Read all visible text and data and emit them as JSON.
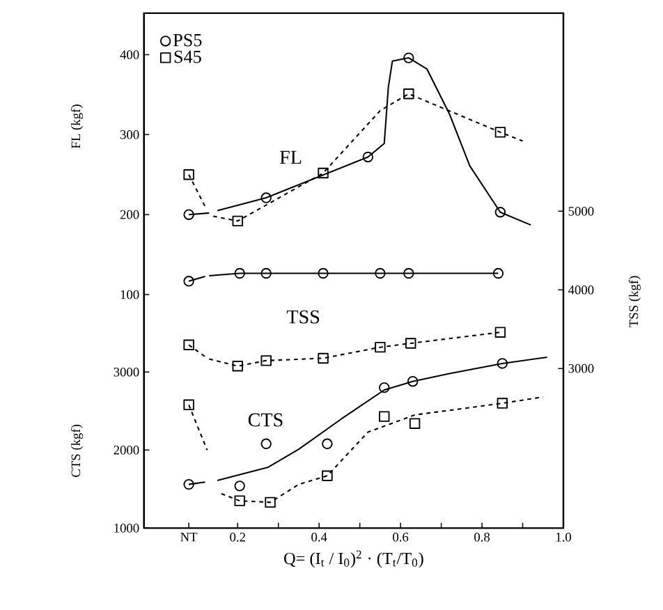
{
  "chart_data": {
    "type": "line",
    "xlabel": "Q= (I$_{t}$ / I$_{0}$)$^{2}$ · (T$_{t}$/T$_{0}$)",
    "ylabel": "FL (kgf)",
    "y2label": "TSS (kgf)",
    "y3label": "CTS (kgf)",
    "xlim": [
      -0.03,
      1.0
    ],
    "xticks": [
      {
        "value": 0.08,
        "label": "NT"
      },
      0.2,
      {
        "value": 0.3,
        "label": null
      },
      0.4,
      {
        "value": 0.5,
        "label": null
      },
      0.6,
      {
        "value": 0.7,
        "label": null
      },
      0.8,
      {
        "value": 0.9,
        "label": null
      },
      {
        "value": 1,
        "label": "1.0"
      }
    ],
    "ylim": [
      -192,
      452
    ],
    "yticks": [
      100,
      200,
      300,
      400
    ],
    "y2lim": [
      970,
      7520
    ],
    "y2ticks": [
      3000,
      4000,
      5000
    ],
    "y3lim": [
      1000,
      7600
    ],
    "y3ticks": [
      1000,
      2000,
      3000
    ],
    "legend": "top left",
    "annotations": [
      "FL",
      "TSS",
      "CTS"
    ],
    "series": [
      {
        "name": "PS5",
        "type": "scatter",
        "axis": "y",
        "marker": "circle",
        "color": "#000000",
        "x": [
          0.08,
          0.27,
          0.52,
          0.62,
          0.845
        ],
        "values": [
          200,
          221,
          272,
          396,
          203
        ]
      },
      {
        "name": "S45",
        "type": "scatter",
        "axis": "y",
        "marker": "square",
        "color": "#000000",
        "x": [
          0.08,
          0.2,
          0.41,
          0.62,
          0.845
        ],
        "values": [
          250,
          192,
          252,
          351,
          303
        ]
      },
      {
        "axis": "y",
        "line_style": "solid",
        "color": "#000000",
        "x": [
          0.08,
          0.13,
          0.135,
          0.15,
          0.27,
          0.52,
          0.56,
          0.57,
          0.58,
          0.62,
          0.665,
          0.72,
          0.77,
          0.845,
          0.92
        ],
        "values": [
          200,
          202,
          null,
          205,
          221,
          272,
          289,
          359,
          392,
          396,
          382,
          326,
          261,
          203,
          187
        ]
      },
      {
        "axis": "y",
        "line_style": "dashed",
        "color": "#000000",
        "x": [
          0.08,
          0.12,
          0.13,
          0.14,
          0.2,
          0.41,
          0.55,
          0.62,
          0.845,
          0.9
        ],
        "values": [
          250,
          210,
          null,
          198,
          192,
          252,
          330,
          351,
          303,
          292
        ]
      },
      {
        "type": "scatter",
        "axis": "y2",
        "marker": "circle",
        "color": "#000000",
        "x": [
          0.08,
          0.205,
          0.27,
          0.41,
          0.55,
          0.62,
          0.84
        ],
        "values": [
          4110,
          4210,
          4210,
          4210,
          4210,
          4210,
          4210
        ]
      },
      {
        "axis": "y2",
        "line_style": "solid",
        "color": "#000000",
        "x": [
          0.08,
          0.12,
          0.125,
          0.13,
          0.205,
          0.27,
          0.41,
          0.55,
          0.62,
          0.84
        ],
        "values": [
          4110,
          4170,
          null,
          4180,
          4210,
          4210,
          4210,
          4210,
          4210,
          4210
        ]
      },
      {
        "type": "scatter",
        "axis": "y2",
        "marker": "square",
        "color": "#000000",
        "x": [
          0.08,
          0.2,
          0.27,
          0.41,
          0.55,
          0.625,
          0.845
        ],
        "values": [
          3300,
          3030,
          3100,
          3130,
          3270,
          3320,
          3460
        ]
      },
      {
        "axis": "y2",
        "line_style": "dashed",
        "color": "#000000",
        "x": [
          0.08,
          0.12,
          0.125,
          0.13,
          0.2,
          0.27,
          0.41,
          0.55,
          0.625,
          0.845
        ],
        "values": [
          3300,
          3150,
          null,
          3120,
          3030,
          3100,
          3130,
          3270,
          3320,
          3460
        ]
      },
      {
        "type": "scatter",
        "axis": "y3",
        "marker": "circle",
        "color": "#000000",
        "x": [
          0.08,
          0.205,
          0.27,
          0.42,
          0.56,
          0.63,
          0.85
        ],
        "values": [
          1560,
          1540,
          2080,
          2080,
          2800,
          2880,
          3110
        ]
      },
      {
        "axis": "y3",
        "line_style": "solid",
        "color": "#000000",
        "x": [
          0.08,
          0.12,
          0.125,
          0.15,
          0.275,
          0.35,
          0.455,
          0.56,
          0.63,
          0.72,
          0.85,
          0.96
        ],
        "values": [
          1560,
          1590,
          null,
          1610,
          1780,
          2010,
          2400,
          2770,
          2880,
          2980,
          3110,
          3190
        ]
      },
      {
        "type": "scatter",
        "axis": "y3",
        "marker": "square",
        "color": "#000000",
        "x": [
          0.08,
          0.205,
          0.28,
          0.42,
          0.56,
          0.635,
          0.85
        ],
        "values": [
          2580,
          1350,
          1330,
          1670,
          2430,
          2340,
          2600
        ]
      },
      {
        "axis": "y3",
        "line_style": "dashed",
        "color": "#000000",
        "x": [
          0.08,
          0.125,
          0.13,
          0.16,
          0.205,
          0.28,
          0.35,
          0.42,
          0.52,
          0.635,
          0.85,
          0.95
        ],
        "values": [
          2580,
          2000,
          null,
          1440,
          1350,
          1330,
          1560,
          1670,
          2230,
          2450,
          2600,
          2680
        ]
      }
    ]
  }
}
